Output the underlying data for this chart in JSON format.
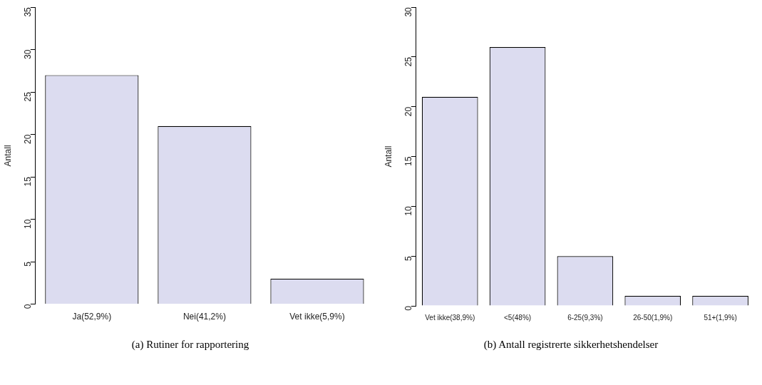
{
  "chart_data": [
    {
      "type": "bar",
      "categories": [
        "Ja(52,9%)",
        "Nei(41,2%)",
        "Vet ikke(5,9%)"
      ],
      "values": [
        27,
        21,
        3
      ],
      "color": "#dcdcf0",
      "ylabel": "Antall",
      "ylim": [
        0,
        35
      ],
      "yticks": [
        0,
        5,
        10,
        15,
        20,
        25,
        30,
        35
      ],
      "grid": false,
      "legend": false,
      "annotations": [
        "(a) Rutiner for rapportering"
      ]
    },
    {
      "type": "bar",
      "categories": [
        "Vet ikke(38,9%)",
        "<5(48%)",
        "6-25(9,3%)",
        "26-50(1,9%)",
        "51+(1,9%)"
      ],
      "values": [
        21,
        26,
        5,
        1,
        1
      ],
      "color": "#dcdcf0",
      "ylabel": "Antall",
      "ylim": [
        0,
        30
      ],
      "yticks": [
        0,
        5,
        10,
        15,
        20,
        25,
        30
      ],
      "grid": false,
      "legend": false,
      "annotations": [
        "(b) Antall registrerte sikkerhetshendelser"
      ]
    }
  ]
}
